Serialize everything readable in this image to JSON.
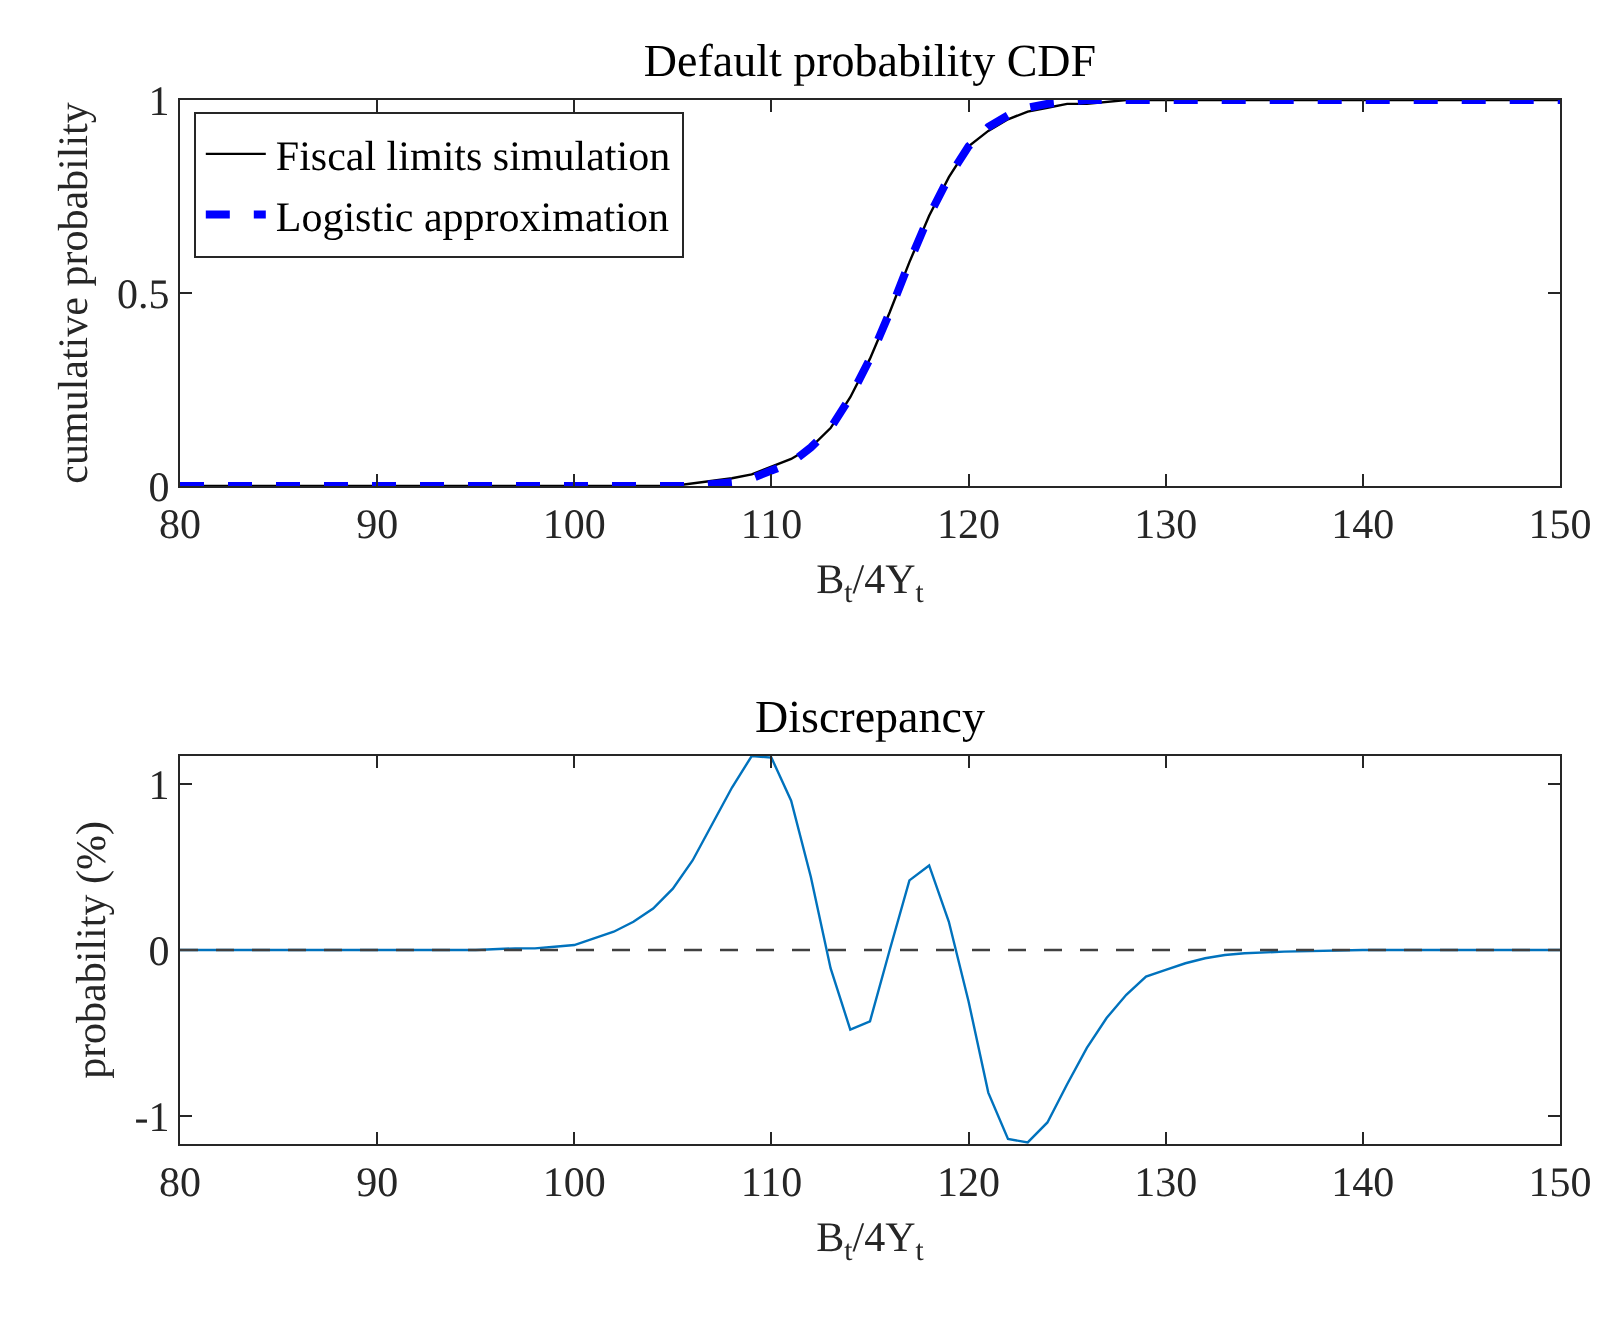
{
  "chart_data": [
    {
      "type": "line",
      "title": "Default probability CDF",
      "xlabel": "B$_{t}$/4Y$_{t}$",
      "ylabel": "cumulative probability",
      "xlim": [
        80,
        150
      ],
      "xticks": [
        80,
        90,
        100,
        110,
        120,
        130,
        140,
        150
      ],
      "ylim": [
        0,
        1
      ],
      "yticks": [
        0,
        0.5,
        1
      ],
      "grid": false,
      "legend": "top left",
      "series": [
        {
          "name": "Fiscal limits simulation",
          "color": "#000000",
          "line_style": "solid",
          "x": [
            80,
            100,
            105,
            108,
            109,
            110,
            111,
            112,
            113,
            114,
            115,
            116,
            117,
            118,
            119,
            120,
            121,
            122,
            123,
            124,
            125,
            126,
            128,
            130,
            150
          ],
          "values": [
            0,
            0,
            0,
            0.02,
            0.03,
            0.05,
            0.07,
            0.1,
            0.15,
            0.23,
            0.33,
            0.45,
            0.58,
            0.7,
            0.8,
            0.88,
            0.92,
            0.95,
            0.97,
            0.98,
            0.99,
            0.99,
            1,
            1,
            1
          ]
        },
        {
          "name": "Logistic approximation",
          "color": "#0000ff",
          "line_style": "dashed",
          "x": [
            80,
            100,
            104,
            106,
            108,
            109,
            110,
            111,
            112,
            113,
            114,
            115,
            116,
            117,
            118,
            119,
            120,
            121,
            122,
            123,
            124,
            126,
            128,
            150
          ],
          "values": [
            0,
            0,
            0,
            0,
            0.01,
            0.02,
            0.04,
            0.06,
            0.1,
            0.15,
            0.23,
            0.33,
            0.45,
            0.58,
            0.7,
            0.8,
            0.88,
            0.93,
            0.96,
            0.98,
            0.99,
            1,
            1,
            1
          ]
        }
      ]
    },
    {
      "type": "line",
      "title": "Discrepancy",
      "xlabel": "B$_{t}$/4Y$_{t}$",
      "ylabel": "probability (%)",
      "xlim": [
        80,
        150
      ],
      "xticks": [
        80,
        90,
        100,
        110,
        120,
        130,
        140,
        150
      ],
      "ylim": [
        -1.17,
        1.17
      ],
      "yticks": [
        -1,
        0,
        1
      ],
      "grid": false,
      "legend": false,
      "ref_lines": [
        {
          "axis": "y",
          "value": 0,
          "color": "#404040",
          "line_style": "dashed"
        }
      ],
      "series": [
        {
          "color": "#0072bd",
          "x": [
            80,
            90,
            95,
            97,
            98,
            99,
            100,
            101,
            102,
            103,
            104,
            105,
            106,
            107,
            108,
            109,
            110,
            111,
            112,
            113,
            114,
            115,
            116,
            117,
            118,
            119,
            120,
            121,
            122,
            123,
            124,
            125,
            126,
            127,
            128,
            129,
            130,
            131,
            132,
            133,
            134,
            136,
            140,
            150
          ],
          "values": [
            0,
            0,
            0,
            0.01,
            0.01,
            0.02,
            0.03,
            0.07,
            0.11,
            0.17,
            0.25,
            0.37,
            0.54,
            0.76,
            0.98,
            1.17,
            1.16,
            0.9,
            0.44,
            -0.11,
            -0.48,
            -0.43,
            0,
            0.42,
            0.51,
            0.17,
            -0.31,
            -0.86,
            -1.14,
            -1.16,
            -1.04,
            -0.81,
            -0.59,
            -0.41,
            -0.27,
            -0.16,
            -0.12,
            -0.08,
            -0.05,
            -0.03,
            -0.02,
            -0.01,
            0,
            0
          ]
        }
      ]
    }
  ]
}
